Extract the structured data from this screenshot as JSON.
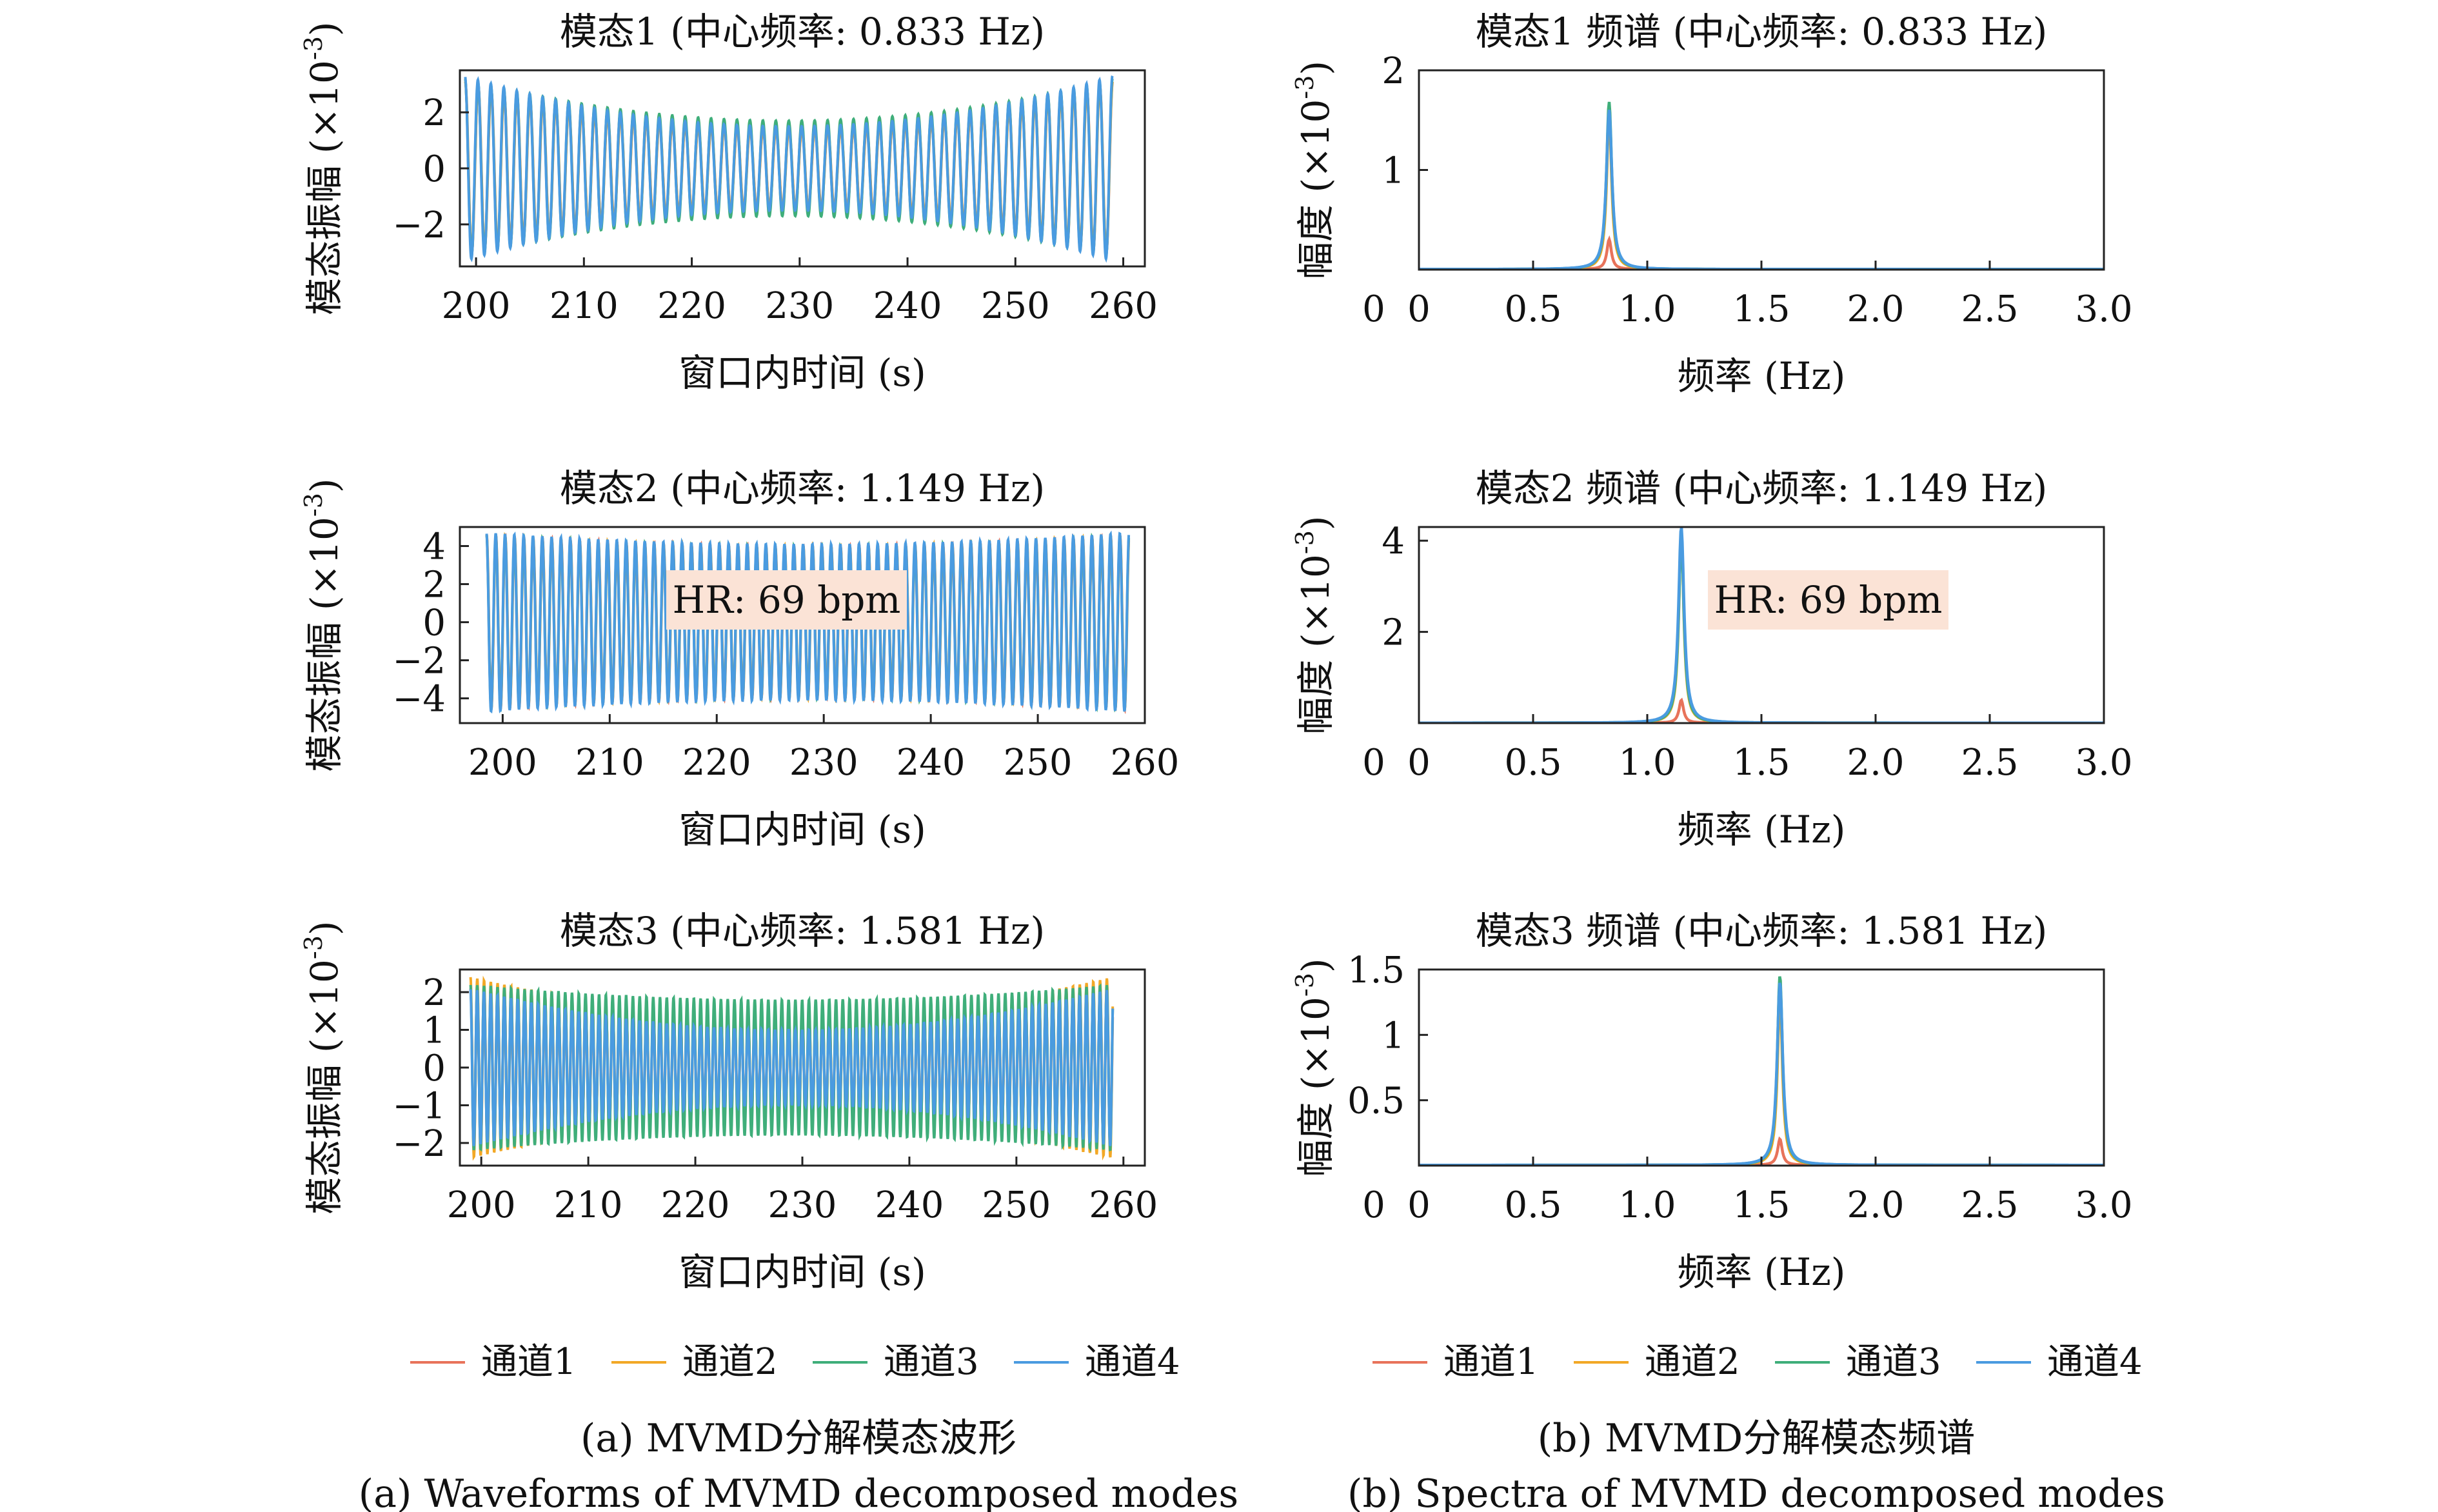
{
  "colors": {
    "channel1": "#E8735A",
    "channel2": "#F2A826",
    "channel3": "#3FAE7A",
    "channel4": "#4A9BE0",
    "annotation_bg": "#FBE3D6"
  },
  "legend": [
    "通道1",
    "通道2",
    "通道3",
    "通道4"
  ],
  "captions": {
    "a_cn": "(a) MVMD分解模态波形",
    "a_en": "(a) Waveforms of MVMD decomposed modes",
    "b_cn": "(b) MVMD分解模态频谱",
    "b_en": "(b) Spectra of MVMD decomposed modes"
  },
  "axis_text": {
    "wave_ylabel": "模态振幅 (×10",
    "spec_ylabel": "幅度 (×10",
    "exp": "-3",
    "close": ")"
  },
  "chart_data": [
    {
      "id": "wave1",
      "type": "line",
      "title": "模态1 (中心频率: 0.833 Hz)",
      "xlabel": "窗口内时间 (s)",
      "ylabel": "模态振幅 (×10-3)",
      "xlim": [
        198.5,
        262
      ],
      "ylim": [
        -3.5,
        3.5
      ],
      "xticks": [
        200,
        210,
        220,
        230,
        240,
        250,
        260
      ],
      "yticks": [
        -2,
        0,
        2
      ],
      "signal": {
        "freq_hz": 0.833,
        "t_start": 199,
        "t_end": 259,
        "amp_edge": [
          3.1,
          3.1,
          3.2,
          3.3
        ],
        "amp_mid": [
          1.4,
          1.4,
          1.7,
          1.5
        ]
      },
      "annotation": ""
    },
    {
      "id": "wave2",
      "type": "line",
      "title": "模态2 (中心频率: 1.149 Hz)",
      "xlabel": "窗口内时间 (s)",
      "ylabel": "模态振幅 (×10-3)",
      "xlim": [
        196,
        260
      ],
      "ylim": [
        -5.3,
        5.0
      ],
      "xticks": [
        200,
        210,
        220,
        230,
        240,
        250,
        260
      ],
      "yticks": [
        -4,
        -2,
        0,
        2,
        4
      ],
      "signal": {
        "freq_hz": 1.149,
        "t_start": 198.5,
        "t_end": 258.5,
        "amp_edge": [
          4.6,
          4.6,
          4.6,
          4.7
        ],
        "amp_mid": [
          4.0,
          4.0,
          4.0,
          4.1
        ]
      },
      "annotation": "HR: 69 bpm"
    },
    {
      "id": "wave3",
      "type": "line",
      "title": "模态3 (中心频率: 1.581 Hz)",
      "xlabel": "窗口内时间 (s)",
      "ylabel": "模态振幅 (×10-3)",
      "xlim": [
        198,
        262
      ],
      "ylim": [
        -2.6,
        2.6
      ],
      "xticks": [
        200,
        210,
        220,
        230,
        240,
        250,
        260
      ],
      "yticks": [
        -2,
        -1,
        0,
        1,
        2
      ],
      "signal": {
        "freq_hz": 1.581,
        "t_start": 199,
        "t_end": 259,
        "amp_edge": [
          2.1,
          2.4,
          2.2,
          2.1
        ],
        "amp_mid": [
          1.4,
          1.4,
          1.8,
          1.0
        ]
      },
      "annotation": ""
    },
    {
      "id": "spec1",
      "type": "line",
      "title": "模态1 频谱 (中心频率: 0.833 Hz)",
      "xlabel": "频率 (Hz)",
      "ylabel": "幅度 (×10-3)",
      "xlim": [
        0,
        3.0
      ],
      "ylim": [
        0,
        2.0
      ],
      "xticks": [
        0,
        0.5,
        1.0,
        1.5,
        2.0,
        2.5,
        3.0
      ],
      "xticklabels": [
        "0",
        "0.5",
        "1.0",
        "1.5",
        "2.0",
        "2.5",
        "3.0"
      ],
      "yticks": [
        1,
        2
      ],
      "ytick_zero_label": "0",
      "peak": {
        "center_hz": 0.833,
        "heights": [
          0.3,
          1.55,
          1.68,
          1.6
        ],
        "width_hz": 0.012
      },
      "annotation": ""
    },
    {
      "id": "spec2",
      "type": "line",
      "title": "模态2 频谱 (中心频率: 1.149 Hz)",
      "xlabel": "频率 (Hz)",
      "ylabel": "幅度 (×10-3)",
      "xlim": [
        0,
        3.0
      ],
      "ylim": [
        0,
        4.3
      ],
      "xticks": [
        0,
        0.5,
        1.0,
        1.5,
        2.0,
        2.5,
        3.0
      ],
      "xticklabels": [
        "0",
        "0.5",
        "1.0",
        "1.5",
        "2.0",
        "2.5",
        "3.0"
      ],
      "yticks": [
        2,
        4
      ],
      "ytick_zero_label": "0",
      "peak": {
        "center_hz": 1.149,
        "heights": [
          0.5,
          4.2,
          4.1,
          4.3
        ],
        "width_hz": 0.012
      },
      "annotation": "HR: 69 bpm"
    },
    {
      "id": "spec3",
      "type": "line",
      "title": "模态3 频谱 (中心频率: 1.581 Hz)",
      "xlabel": "频率 (Hz)",
      "ylabel": "幅度 (×10-3)",
      "xlim": [
        0,
        3.0
      ],
      "ylim": [
        0,
        1.5
      ],
      "xticks": [
        0,
        0.5,
        1.0,
        1.5,
        2.0,
        2.5,
        3.0
      ],
      "xticklabels": [
        "0",
        "0.5",
        "1.0",
        "1.5",
        "2.0",
        "2.5",
        "3.0"
      ],
      "yticks": [
        0.5,
        1.0,
        1.5
      ],
      "ytick_zero_label": "0",
      "peak": {
        "center_hz": 1.581,
        "heights": [
          0.2,
          1.3,
          1.45,
          1.4
        ],
        "width_hz": 0.012
      },
      "annotation": ""
    }
  ]
}
